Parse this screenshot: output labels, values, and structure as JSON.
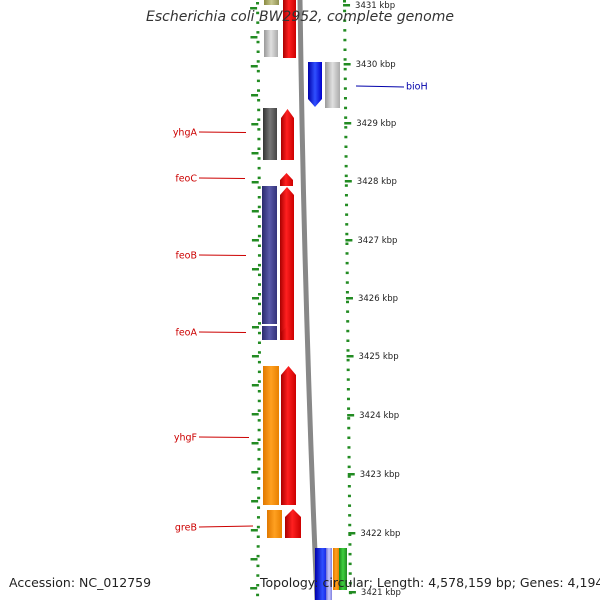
{
  "header": {
    "title": "Escherichia coli BW2952, complete genome"
  },
  "footer": {
    "accession": "Accession: NC_012759",
    "topology": "Topology: circular; Length: 4,578,159 bp; Genes: 4,194"
  },
  "colors": {
    "tick": "#228b22",
    "left_label": "#cc0000",
    "right_label": "#0000aa",
    "backbone": "#888888"
  },
  "scale": [
    {
      "label": "3431 kbp"
    },
    {
      "label": "3430 kbp"
    },
    {
      "label": "3429 kbp"
    },
    {
      "label": "3428 kbp"
    },
    {
      "label": "3427 kbp"
    },
    {
      "label": "3426 kbp"
    },
    {
      "label": "3425 kbp"
    },
    {
      "label": "3424 kbp"
    },
    {
      "label": "3423 kbp"
    },
    {
      "label": "3422 kbp"
    },
    {
      "label": "3421 kbp"
    }
  ],
  "genes_left": [
    {
      "name": "yhgA",
      "color": "#cc0000"
    },
    {
      "name": "feoC",
      "color": "#cc0000"
    },
    {
      "name": "feoB",
      "color": "#cc0000"
    },
    {
      "name": "feoA",
      "color": "#cc0000"
    },
    {
      "name": "yhgF",
      "color": "#cc0000"
    },
    {
      "name": "greB",
      "color": "#cc0000"
    }
  ],
  "genes_right": [
    {
      "name": "bioH",
      "color": "#0000aa"
    }
  ]
}
